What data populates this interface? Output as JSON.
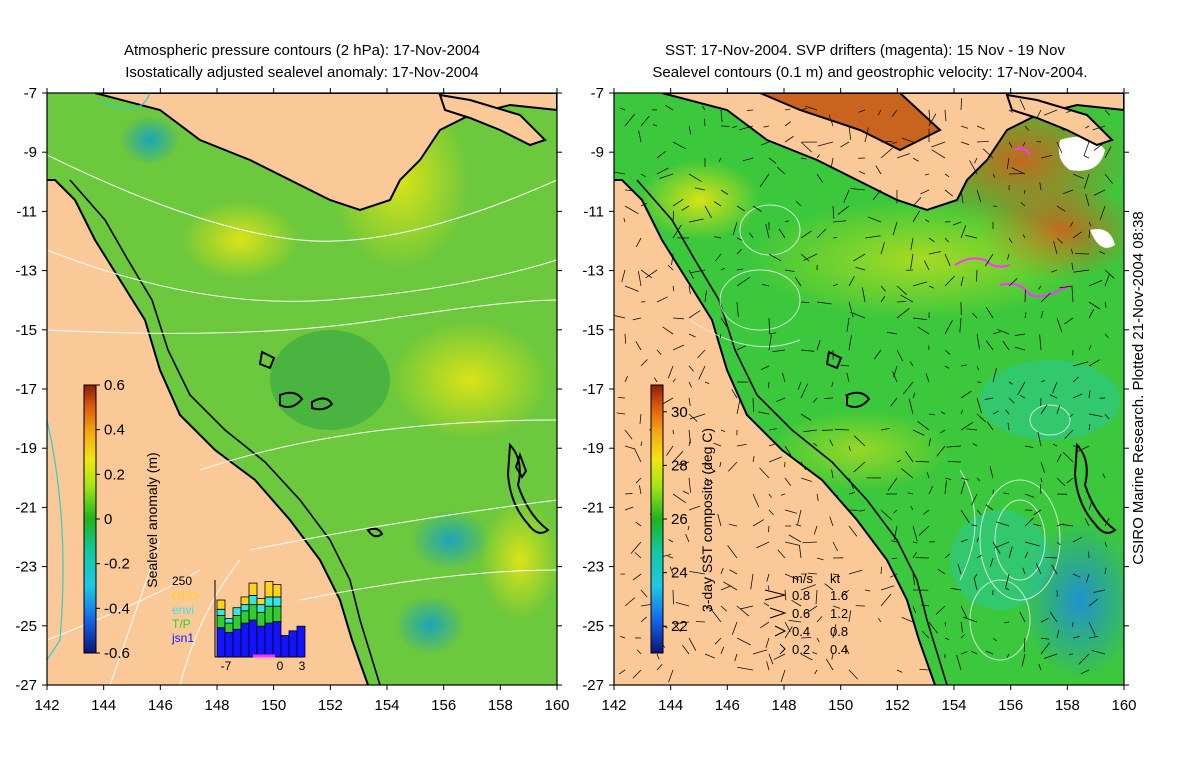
{
  "left_panel": {
    "title_line1": "Atmospheric pressure contours (2 hPa): 17-Nov-2004",
    "title_line2": "Isostatically adjusted sealevel anomaly: 17-Nov-2004",
    "colorbar_label": "Sealevel anomaly (m)",
    "colorbar_ticks": [
      "0.6",
      "0.4",
      "0.2",
      "0",
      "-0.2",
      "-0.4",
      "-0.6"
    ],
    "inset": {
      "ymax_label": "250",
      "legend": [
        {
          "name": "GFO",
          "color": "#ffd21e"
        },
        {
          "name": "envi",
          "color": "#33e6e6"
        },
        {
          "name": "T/P",
          "color": "#33cc33"
        },
        {
          "name": "jsn1",
          "color": "#1414ff"
        }
      ],
      "x_ticks": [
        "-7",
        "0",
        "3"
      ]
    }
  },
  "right_panel": {
    "title_line1": "SST: 17-Nov-2004. SVP drifters (magenta): 15 Nov - 19 Nov",
    "title_line2": "Sealevel contours (0.1 m) and geostrophic velocity: 17-Nov-2004.",
    "colorbar_label": "3-day SST composite (deg C)",
    "colorbar_ticks": [
      "30",
      "28",
      "26",
      "24",
      "22"
    ],
    "velocity_key": {
      "header_ms": "m/s",
      "header_kt": "kt",
      "rows": [
        {
          "ms": "0.8",
          "kt": "1.6"
        },
        {
          "ms": "0.6",
          "kt": "1.2"
        },
        {
          "ms": "0.4",
          "kt": "0.8"
        },
        {
          "ms": "0.2",
          "kt": "0.4"
        }
      ]
    }
  },
  "credit": "CSIRO Marine Research. Plotted 21-Nov-2004 08:38",
  "colors": {
    "land": "#fbc898",
    "coast": "#000000",
    "contour": "#ffffff"
  },
  "chart_data": [
    {
      "type": "heatmap",
      "title": "Atmospheric pressure contours (2 hPa): 17-Nov-2004 / Isostatically adjusted sealevel anomaly: 17-Nov-2004",
      "x_ticks": [
        "142",
        "144",
        "146",
        "148",
        "150",
        "152",
        "154",
        "156",
        "158",
        "160"
      ],
      "y_ticks": [
        "-7",
        "-9",
        "-11",
        "-13",
        "-15",
        "-17",
        "-19",
        "-21",
        "-23",
        "-25",
        "-27"
      ],
      "xlim": [
        142,
        160
      ],
      "ylim": [
        -27,
        -7
      ],
      "colorbar": {
        "label": "Sealevel anomaly (m)",
        "range": [
          -0.6,
          0.6
        ]
      },
      "inset_histogram": {
        "type": "bar",
        "x_ticks": [
          "-7",
          "0",
          "3"
        ],
        "ymax": 250,
        "series": [
          {
            "name": "jsn1",
            "values": [
              95,
              80,
              90,
              110,
              120,
              100,
              110,
              115,
              70,
              85,
              100
            ]
          },
          {
            "name": "T/P",
            "values": [
              40,
              30,
              45,
              40,
              50,
              45,
              55,
              50,
              0,
              0,
              0
            ]
          },
          {
            "name": "envi",
            "values": [
              20,
              15,
              25,
              20,
              30,
              25,
              30,
              30,
              0,
              0,
              0
            ]
          },
          {
            "name": "GFO",
            "values": [
              30,
              0,
              0,
              25,
              40,
              20,
              50,
              40,
              0,
              0,
              0
            ]
          }
        ]
      }
    },
    {
      "type": "heatmap",
      "title": "SST: 17-Nov-2004. SVP drifters (magenta): 15 Nov - 19 Nov / Sealevel contours (0.1 m) and geostrophic velocity: 17-Nov-2004.",
      "x_ticks": [
        "142",
        "144",
        "146",
        "148",
        "150",
        "152",
        "154",
        "156",
        "158",
        "160"
      ],
      "y_ticks": [
        "-7",
        "-9",
        "-11",
        "-13",
        "-15",
        "-17",
        "-19",
        "-21",
        "-23",
        "-25",
        "-27"
      ],
      "xlim": [
        142,
        160
      ],
      "ylim": [
        -27,
        -7
      ],
      "colorbar": {
        "label": "3-day SST composite (deg C)",
        "range": [
          21,
          31
        ]
      },
      "velocity_key_ms": [
        0.8,
        0.6,
        0.4,
        0.2
      ],
      "velocity_key_kt": [
        1.6,
        1.2,
        0.8,
        0.4
      ]
    }
  ]
}
